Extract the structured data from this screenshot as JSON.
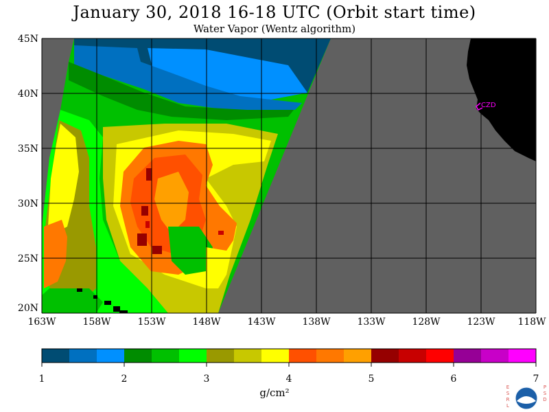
{
  "header": {
    "title": "January 30, 2018  16-18 UTC  (Orbit start time)",
    "subtitle": "Water Vapor (Wentz algorithm)"
  },
  "map": {
    "lat_labels": [
      "45N",
      "40N",
      "35N",
      "30N",
      "25N",
      "20N"
    ],
    "lat_values": [
      45,
      40,
      35,
      30,
      25,
      20
    ],
    "lon_labels": [
      "163W",
      "158W",
      "153W",
      "148W",
      "143W",
      "138W",
      "133W",
      "128W",
      "123W",
      "118W"
    ],
    "lon_values": [
      -163,
      -158,
      -153,
      -148,
      -143,
      -138,
      -133,
      -128,
      -123,
      -118
    ],
    "lat_range": [
      20,
      45
    ],
    "lon_range": [
      -163,
      -118
    ],
    "station_label": "CZD",
    "colors": {
      "no_data": "#606060",
      "land": "#000000",
      "station": "#ff00ff",
      "grid": "#000000"
    }
  },
  "colorbar": {
    "range": [
      1,
      7
    ],
    "tick_labels": [
      "1",
      "2",
      "3",
      "4",
      "5",
      "6",
      "7"
    ],
    "units": "g/cm²",
    "colors": [
      "#004c73",
      "#0070c0",
      "#0090ff",
      "#008c00",
      "#00c000",
      "#00ff00",
      "#999900",
      "#c8c800",
      "#ffff00",
      "#ff5000",
      "#ff7800",
      "#ffa000",
      "#960000",
      "#c80000",
      "#ff0000",
      "#960096",
      "#c800c8",
      "#ff00ff"
    ]
  },
  "logo": {
    "left_letters": "ESRL",
    "right_letters": "PSD",
    "name": "noaa-logo-icon"
  }
}
